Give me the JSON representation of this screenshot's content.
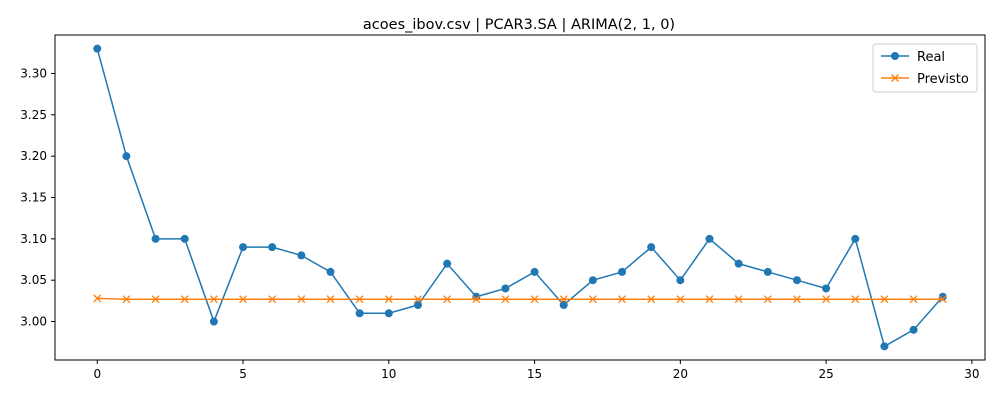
{
  "chart_data": {
    "type": "line",
    "title": "acoes_ibov.csv | PCAR3.SA | ARIMA(2, 1, 0)",
    "xlabel": "",
    "ylabel": "",
    "xlim": [
      -1.45,
      30.45
    ],
    "ylim": [
      2.9535,
      3.3465
    ],
    "x_ticks": [
      0,
      5,
      10,
      15,
      20,
      25,
      30
    ],
    "y_ticks": [
      3.0,
      3.05,
      3.1,
      3.15,
      3.2,
      3.25,
      3.3
    ],
    "grid": false,
    "legend_position": "top-right",
    "x": [
      0,
      1,
      2,
      3,
      4,
      5,
      6,
      7,
      8,
      9,
      10,
      11,
      12,
      13,
      14,
      15,
      16,
      17,
      18,
      19,
      20,
      21,
      22,
      23,
      24,
      25,
      26,
      27,
      28,
      29
    ],
    "series": [
      {
        "name": "Real",
        "color": "#1f77b4",
        "marker": "circle",
        "values": [
          3.33,
          3.2,
          3.1,
          3.1,
          3.0,
          3.09,
          3.09,
          3.08,
          3.06,
          3.01,
          3.01,
          3.02,
          3.07,
          3.03,
          3.04,
          3.06,
          3.02,
          3.05,
          3.06,
          3.09,
          3.05,
          3.1,
          3.07,
          3.06,
          3.05,
          3.04,
          3.1,
          2.97,
          2.99,
          3.03
        ]
      },
      {
        "name": "Previsto",
        "color": "#ff7f0e",
        "marker": "x",
        "values": [
          3.028,
          3.027,
          3.027,
          3.027,
          3.027,
          3.027,
          3.027,
          3.027,
          3.027,
          3.027,
          3.027,
          3.027,
          3.027,
          3.027,
          3.027,
          3.027,
          3.027,
          3.027,
          3.027,
          3.027,
          3.027,
          3.027,
          3.027,
          3.027,
          3.027,
          3.027,
          3.027,
          3.027,
          3.027,
          3.027
        ]
      }
    ]
  }
}
